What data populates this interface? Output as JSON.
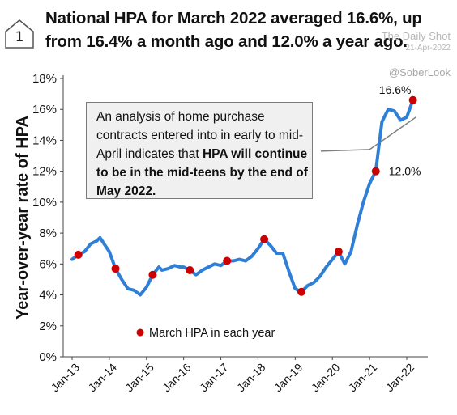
{
  "badge": "1",
  "title": "National HPA for March 2022 averaged 16.6%, up from 16.4% a month ago and 12.0% a year ago.",
  "source": "The Daily Shot",
  "source_date": "21-Apr-2022",
  "handle": "@SoberLook",
  "note": {
    "part1": "An analysis of home purchase contracts entered into in early to mid-April indicates that ",
    "bold": "HPA will continue to be in the mid-teens by the end of May 2022."
  },
  "colors": {
    "line": "#2f7fd6",
    "marker": "#cc0000",
    "projection": "#808080"
  },
  "chart_data": {
    "type": "line",
    "title": "National HPA for March 2022 averaged 16.6%, up from 16.4% a month ago and 12.0% a year ago.",
    "ylabel": "Year-over-year rate of HPA",
    "xlabel": "",
    "ylim": [
      0,
      18
    ],
    "y_ticks": [
      "0%",
      "2%",
      "4%",
      "6%",
      "8%",
      "10%",
      "12%",
      "14%",
      "16%",
      "18%"
    ],
    "x_ticks": [
      "Jan-13",
      "Jan-14",
      "Jan-15",
      "Jan-16",
      "Jan-17",
      "Jan-18",
      "Jan-19",
      "Jan-20",
      "Jan-21",
      "Jan-22"
    ],
    "grid": false,
    "series": [
      {
        "name": "HPA",
        "points": [
          [
            "2013-01",
            6.3
          ],
          [
            "2013-03",
            6.6
          ],
          [
            "2013-05",
            6.8
          ],
          [
            "2013-07",
            7.3
          ],
          [
            "2013-09",
            7.5
          ],
          [
            "2013-10",
            7.7
          ],
          [
            "2013-12",
            7.1
          ],
          [
            "2014-01",
            6.8
          ],
          [
            "2014-03",
            5.7
          ],
          [
            "2014-05",
            5.0
          ],
          [
            "2014-07",
            4.4
          ],
          [
            "2014-09",
            4.3
          ],
          [
            "2014-11",
            4.0
          ],
          [
            "2015-01",
            4.5
          ],
          [
            "2015-02",
            4.9
          ],
          [
            "2015-03",
            5.3
          ],
          [
            "2015-05",
            5.8
          ],
          [
            "2015-06",
            5.6
          ],
          [
            "2015-08",
            5.7
          ],
          [
            "2015-10",
            5.9
          ],
          [
            "2015-12",
            5.8
          ],
          [
            "2016-01",
            5.8
          ],
          [
            "2016-03",
            5.6
          ],
          [
            "2016-05",
            5.3
          ],
          [
            "2016-07",
            5.6
          ],
          [
            "2016-09",
            5.8
          ],
          [
            "2016-11",
            6.0
          ],
          [
            "2017-01",
            5.9
          ],
          [
            "2017-03",
            6.2
          ],
          [
            "2017-05",
            6.2
          ],
          [
            "2017-07",
            6.3
          ],
          [
            "2017-09",
            6.2
          ],
          [
            "2017-11",
            6.5
          ],
          [
            "2018-01",
            7.0
          ],
          [
            "2018-03",
            7.6
          ],
          [
            "2018-05",
            7.2
          ],
          [
            "2018-07",
            6.7
          ],
          [
            "2018-09",
            6.7
          ],
          [
            "2018-11",
            5.5
          ],
          [
            "2019-01",
            4.4
          ],
          [
            "2019-03",
            4.2
          ],
          [
            "2019-05",
            4.6
          ],
          [
            "2019-07",
            4.8
          ],
          [
            "2019-09",
            5.2
          ],
          [
            "2019-11",
            5.8
          ],
          [
            "2020-01",
            6.3
          ],
          [
            "2020-03",
            6.8
          ],
          [
            "2020-05",
            6.0
          ],
          [
            "2020-07",
            6.8
          ],
          [
            "2020-09",
            8.5
          ],
          [
            "2020-11",
            10.0
          ],
          [
            "2021-01",
            11.2
          ],
          [
            "2021-03",
            12.0
          ],
          [
            "2021-05",
            15.2
          ],
          [
            "2021-07",
            16.0
          ],
          [
            "2021-09",
            15.9
          ],
          [
            "2021-11",
            15.3
          ],
          [
            "2022-01",
            15.5
          ],
          [
            "2022-03",
            16.6
          ]
        ]
      }
    ],
    "markers": {
      "name": "March HPA in each year",
      "points": [
        [
          "2013-03",
          6.6
        ],
        [
          "2014-03",
          5.7
        ],
        [
          "2015-03",
          5.3
        ],
        [
          "2016-03",
          5.6
        ],
        [
          "2017-03",
          6.2
        ],
        [
          "2018-03",
          7.6
        ],
        [
          "2019-03",
          4.2
        ],
        [
          "2020-03",
          6.8
        ],
        [
          "2021-03",
          12.0
        ],
        [
          "2022-03",
          16.6
        ]
      ]
    },
    "projection": {
      "points": [
        [
          "2021-01",
          13.4
        ],
        [
          "2022-04",
          15.5
        ]
      ]
    },
    "callouts": [
      {
        "text": "16.6%",
        "x": "2022-03",
        "y": 16.6
      },
      {
        "text": "12.0%",
        "x": "2021-03",
        "y": 12.0
      }
    ],
    "legend_position": "bottom-left"
  }
}
